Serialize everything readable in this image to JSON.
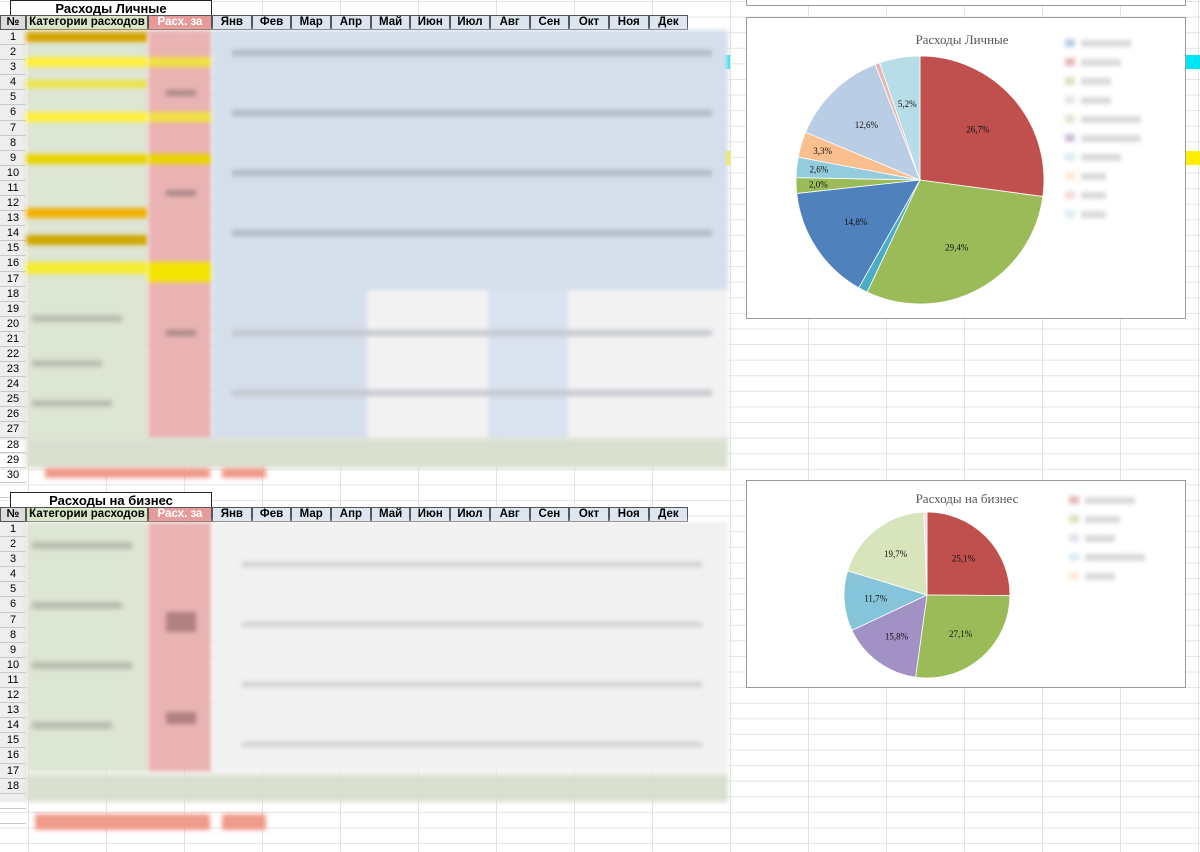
{
  "personal": {
    "title": "Расходы Личные",
    "headers": {
      "num": "№",
      "category": "Категории расходов",
      "year": "Расх. за год",
      "months": [
        "Янв",
        "Фев",
        "Мар",
        "Апр",
        "Май",
        "Июн",
        "Июл",
        "Авг",
        "Сен",
        "Окт",
        "Ноя",
        "Дек"
      ]
    },
    "row_numbers": [
      "1",
      "2",
      "3",
      "4",
      "5",
      "6",
      "7",
      "8",
      "9",
      "10",
      "11",
      "12",
      "13",
      "14",
      "15",
      "16",
      "17",
      "18",
      "19",
      "20",
      "21",
      "22",
      "23",
      "24",
      "25",
      "26",
      "27",
      "28",
      "29",
      "30"
    ]
  },
  "business": {
    "title": "Расходы на бизнес",
    "headers": {
      "num": "№",
      "category": "Категории расходов",
      "year": "Расх. за год",
      "months": [
        "Янв",
        "Фев",
        "Мар",
        "Апр",
        "Май",
        "Июн",
        "Июл",
        "Авг",
        "Сен",
        "Окт",
        "Ноя",
        "Дек"
      ]
    },
    "row_numbers": [
      "1",
      "2",
      "3",
      "4",
      "5",
      "6",
      "7",
      "8",
      "9",
      "10",
      "11",
      "12",
      "13",
      "14",
      "15",
      "16",
      "17",
      "18"
    ]
  },
  "colors": {
    "red": "#c0504d",
    "green": "#9bbb59",
    "blue": "#4f81bd",
    "purple": "#8064a2",
    "aqua": "#4bacc6",
    "orange": "#f79646",
    "lightblue": "#b9cde5",
    "paleblue": "#b7dde8",
    "khaki": "#d7e4bc",
    "sky": "#93cddd",
    "highlight_cyan": "#00e5f5",
    "highlight_yellow": "#ffef00"
  },
  "chart_data": [
    {
      "type": "pie",
      "title": "Расходы Личные",
      "values": [
        26.7,
        29.4,
        1.2,
        14.8,
        2.0,
        2.6,
        3.3,
        12.6,
        0.6,
        5.2
      ],
      "labels": [
        "26,7%",
        "29,4%",
        "",
        "14,8%",
        "2,0%",
        "2,6%",
        "3,3%",
        "12,6%",
        "",
        "5,2%"
      ],
      "colors": [
        "#c0504d",
        "#9bbb59",
        "#4bacc6",
        "#4f81bd",
        "#9bbb59",
        "#93cddd",
        "#fabf8f",
        "#b9cde5",
        "#e6b9b8",
        "#b7dde8"
      ],
      "legend": "right"
    },
    {
      "type": "pie",
      "title": "Расходы на бизнес",
      "values": [
        25.1,
        27.1,
        15.8,
        11.7,
        19.7,
        0.6
      ],
      "labels": [
        "25,1%",
        "27,1%",
        "15,8%",
        "11,7%",
        "19,7%",
        ""
      ],
      "colors": [
        "#c0504d",
        "#9bbb59",
        "#a291c5",
        "#86c5d9",
        "#d7e4bc",
        "#f2dcdb"
      ],
      "legend": "right"
    }
  ]
}
